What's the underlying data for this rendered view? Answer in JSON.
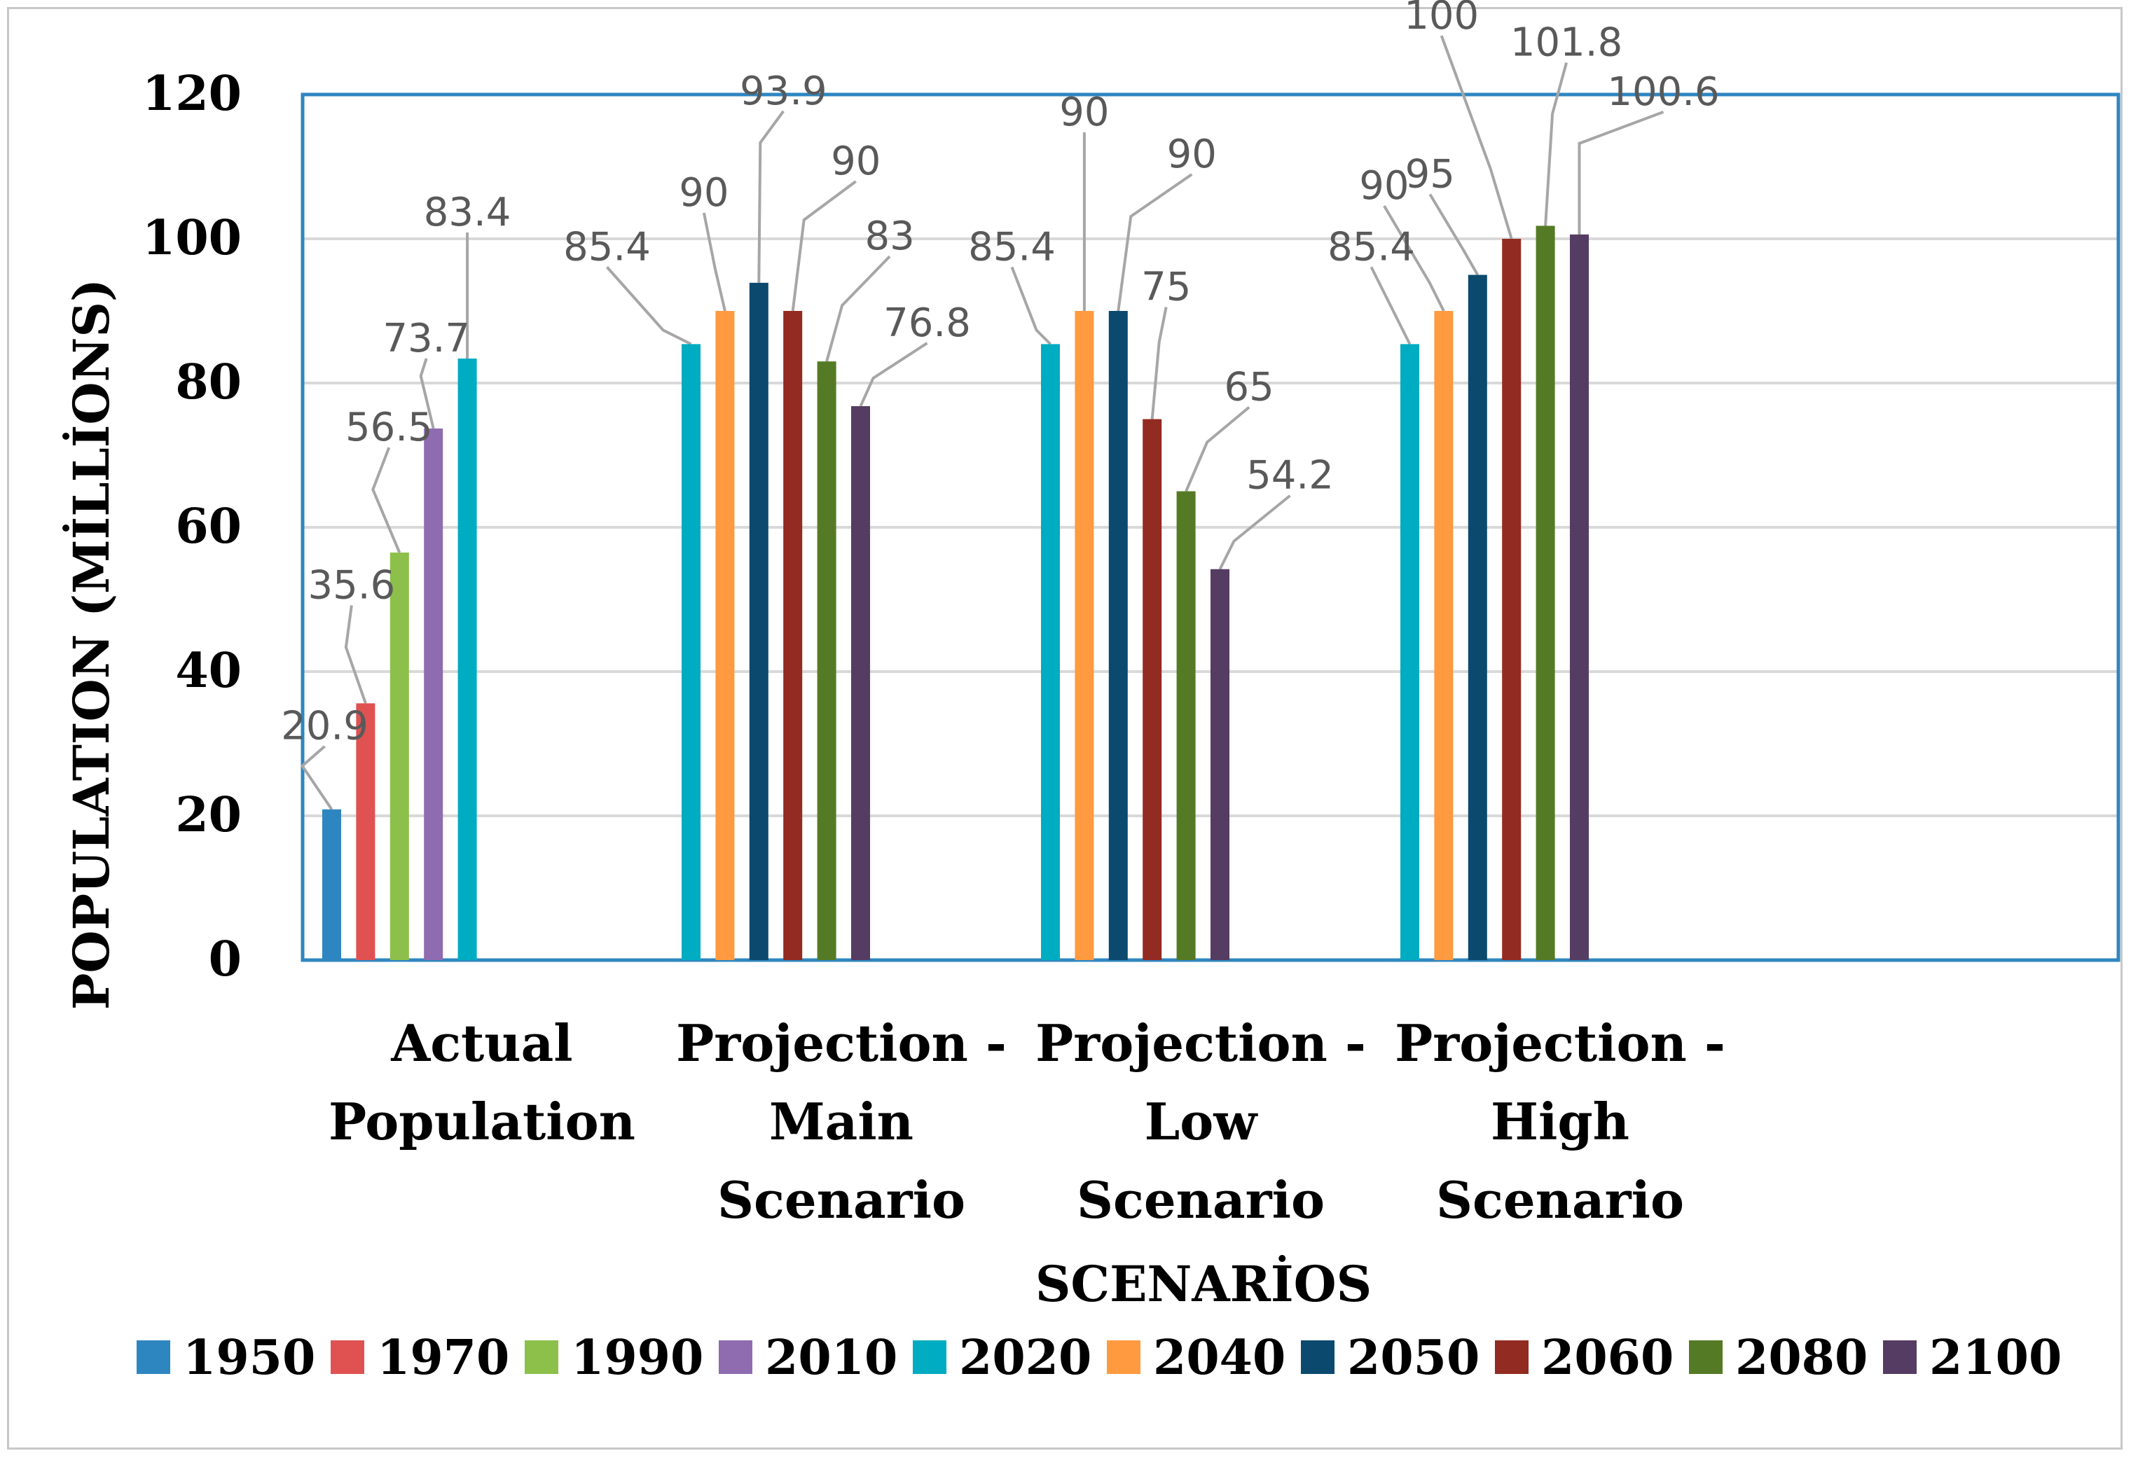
{
  "chart_data": {
    "type": "bar",
    "title": "",
    "xlabel": "SCENARİOS",
    "ylabel": "POPULATION (MİLLİONS)",
    "ylim": [
      0,
      120
    ],
    "yticks": [
      0,
      20,
      40,
      60,
      80,
      100,
      120
    ],
    "grid": true,
    "legend_position": "bottom",
    "categories": [
      {
        "lines": [
          "Actual",
          "Population"
        ]
      },
      {
        "lines": [
          "Projection -",
          "Main",
          "Scenario"
        ]
      },
      {
        "lines": [
          "Projection -",
          "Low",
          "Scenario"
        ]
      },
      {
        "lines": [
          "Projection -",
          "High",
          "Scenario"
        ]
      }
    ],
    "series": [
      {
        "name": "1950",
        "color": "#2e86c1",
        "values": [
          20.9,
          null,
          null,
          null
        ]
      },
      {
        "name": "1970",
        "color": "#e05252",
        "values": [
          35.6,
          null,
          null,
          null
        ]
      },
      {
        "name": "1990",
        "color": "#8cc04b",
        "values": [
          56.5,
          null,
          null,
          null
        ]
      },
      {
        "name": "2010",
        "color": "#8f6bb0",
        "values": [
          73.7,
          null,
          null,
          null
        ]
      },
      {
        "name": "2020",
        "color": "#00acc1",
        "values": [
          83.4,
          85.4,
          85.4,
          85.4
        ]
      },
      {
        "name": "2040",
        "color": "#ff9a40",
        "values": [
          null,
          90,
          90,
          90
        ]
      },
      {
        "name": "2050",
        "color": "#0b4a6e",
        "values": [
          null,
          93.9,
          90,
          95
        ]
      },
      {
        "name": "2060",
        "color": "#922b21",
        "values": [
          null,
          90,
          75,
          100
        ]
      },
      {
        "name": "2080",
        "color": "#557a25",
        "values": [
          null,
          83,
          65,
          101.8
        ]
      },
      {
        "name": "2100",
        "color": "#553c62",
        "values": [
          null,
          76.8,
          54.2,
          100.6
        ]
      }
    ],
    "data_labels": [
      [
        "20.9",
        "35.6",
        "56.5",
        "73.7",
        "83.4"
      ],
      [
        "85.4",
        "90",
        "93.9",
        "90",
        "83",
        "76.8"
      ],
      [
        "85.4",
        "90",
        "90",
        "75",
        "65",
        "54.2"
      ],
      [
        "85.4",
        "90",
        "95",
        "100",
        "101.8",
        "100.6"
      ]
    ]
  }
}
